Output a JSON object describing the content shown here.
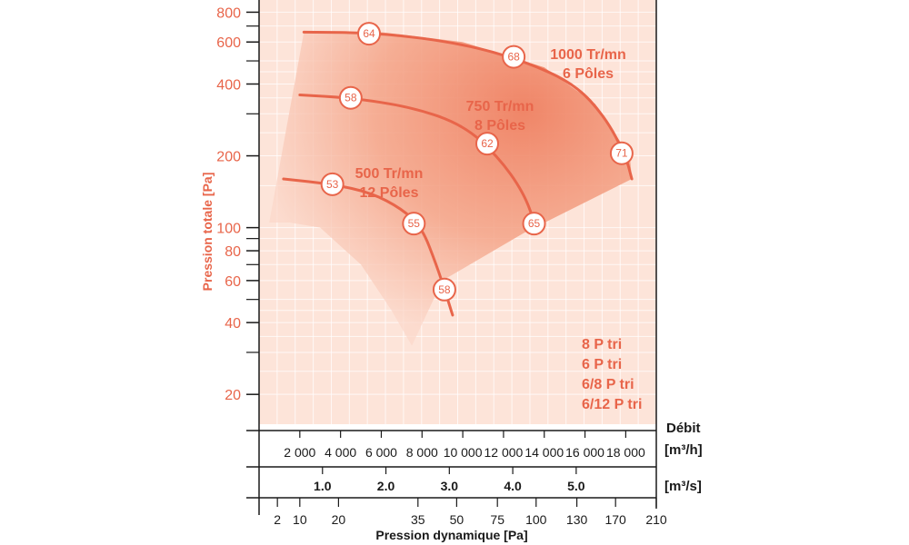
{
  "chart_data": {
    "type": "line",
    "title": "",
    "ylabel": "Pression totale [Pa]",
    "xlabel": "Pression dynamique [Pa]",
    "yscale": "log",
    "ylim": [
      15,
      900
    ],
    "y_ticks": [
      20,
      40,
      60,
      80,
      100,
      200,
      400,
      600,
      800
    ],
    "y_minor_ticks": [
      30,
      50,
      70,
      90,
      300,
      500,
      700
    ],
    "xlim_m3h": [
      0,
      19500
    ],
    "debit_label": "Débit",
    "m3h_unit": "[m³/h]",
    "m3s_unit": "[m³/s]",
    "m3h_ticks": [
      {
        "v": 2000,
        "label": "2 000"
      },
      {
        "v": 4000,
        "label": "4 000"
      },
      {
        "v": 6000,
        "label": "6 000"
      },
      {
        "v": 8000,
        "label": "8 000"
      },
      {
        "v": 10000,
        "label": "10 000"
      },
      {
        "v": 12000,
        "label": "12 000"
      },
      {
        "v": 14000,
        "label": "14 000"
      },
      {
        "v": 16000,
        "label": "16 000"
      },
      {
        "v": 18000,
        "label": "18 000"
      }
    ],
    "m3s_ticks": [
      {
        "v": 1.0,
        "label": "1.0"
      },
      {
        "v": 2.0,
        "label": "2.0"
      },
      {
        "v": 3.0,
        "label": "3.0"
      },
      {
        "v": 4.0,
        "label": "4.0"
      },
      {
        "v": 5.0,
        "label": "5.0"
      }
    ],
    "dynamic_pressure_ticks": [
      {
        "v": 900,
        "label": "2"
      },
      {
        "v": 2000,
        "label": "10"
      },
      {
        "v": 3900,
        "label": "20"
      },
      {
        "v": 7800,
        "label": "35"
      },
      {
        "v": 9700,
        "label": "50"
      },
      {
        "v": 11700,
        "label": "75"
      },
      {
        "v": 13600,
        "label": "100"
      },
      {
        "v": 15600,
        "label": "130"
      },
      {
        "v": 17500,
        "label": "170"
      },
      {
        "v": 19500,
        "label": "210"
      }
    ],
    "envelope_outer": [
      [
        500,
        105
      ],
      [
        2200,
        660
      ],
      [
        6000,
        660
      ],
      [
        10000,
        600
      ],
      [
        14000,
        470
      ],
      [
        16500,
        330
      ],
      [
        18200,
        200
      ],
      [
        18300,
        160
      ],
      [
        13000,
        95
      ],
      [
        9000,
        60
      ],
      [
        7500,
        32
      ],
      [
        6500,
        45
      ],
      [
        5000,
        70
      ],
      [
        3000,
        100
      ],
      [
        1500,
        105
      ]
    ],
    "series": [
      {
        "name": "1000 Tr/mn",
        "label_line1": "1000 Tr/mn",
        "label_line2": "6 Pôles",
        "points": [
          [
            2200,
            660
          ],
          [
            6000,
            655
          ],
          [
            10000,
            590
          ],
          [
            13000,
            500
          ],
          [
            15500,
            400
          ],
          [
            17000,
            290
          ],
          [
            18000,
            200
          ],
          [
            18300,
            160
          ]
        ],
        "marks": [
          {
            "x": 5400,
            "y": 650,
            "v": "64"
          },
          {
            "x": 12500,
            "y": 520,
            "v": "68"
          },
          {
            "x": 17800,
            "y": 205,
            "v": "71"
          }
        ]
      },
      {
        "name": "750 Tr/mn",
        "label_line1": "750 Tr/mn",
        "label_line2": "8 Pôles",
        "points": [
          [
            2000,
            360
          ],
          [
            4500,
            350
          ],
          [
            7500,
            320
          ],
          [
            10000,
            270
          ],
          [
            11700,
            200
          ],
          [
            13000,
            140
          ],
          [
            13600,
            100
          ]
        ],
        "marks": [
          {
            "x": 4500,
            "y": 350,
            "v": "58"
          },
          {
            "x": 11200,
            "y": 225,
            "v": "62"
          },
          {
            "x": 13500,
            "y": 104,
            "v": "65"
          }
        ]
      },
      {
        "name": "500 Tr/mn",
        "label_line1": "500 Tr/mn",
        "label_line2": "12 Pôles",
        "points": [
          [
            1200,
            160
          ],
          [
            3600,
            152
          ],
          [
            5500,
            140
          ],
          [
            7000,
            120
          ],
          [
            8000,
            100
          ],
          [
            8700,
            70
          ],
          [
            9200,
            52
          ],
          [
            9500,
            43
          ]
        ],
        "marks": [
          {
            "x": 3600,
            "y": 152,
            "v": "53"
          },
          {
            "x": 7600,
            "y": 104,
            "v": "55"
          },
          {
            "x": 9100,
            "y": 55,
            "v": "58"
          }
        ]
      }
    ],
    "legend": [
      "8 P tri",
      "6 P tri",
      "6/8 P tri",
      "6/12 P tri"
    ]
  }
}
